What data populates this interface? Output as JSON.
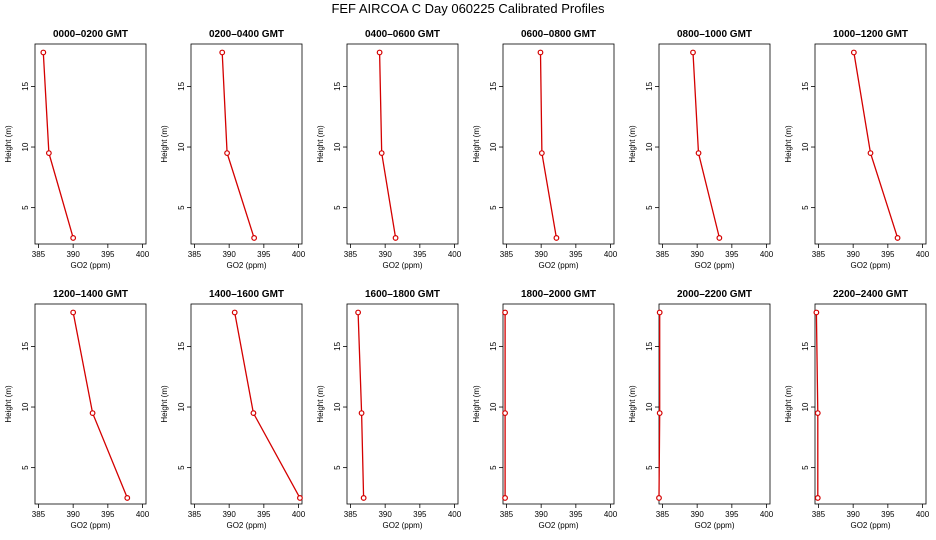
{
  "page": {
    "title": "FEF AIRCOA C  Day 060225  Calibrated Profiles"
  },
  "style": {
    "series_color": "#d40000",
    "axis_color": "#000000"
  },
  "chart_data": [
    {
      "type": "line",
      "title": "0000–0200 GMT",
      "xlabel": "GO2 (ppm)",
      "ylabel": "Height (m)",
      "xlim": [
        384.5,
        400.5
      ],
      "ylim": [
        2,
        18.5
      ],
      "xticks": [
        385,
        390,
        395,
        400
      ],
      "yticks": [
        5,
        10,
        15
      ],
      "series": [
        {
          "x": [
            390.0,
            386.5,
            385.7
          ],
          "y": [
            2.5,
            9.5,
            17.8
          ]
        }
      ]
    },
    {
      "type": "line",
      "title": "0200–0400 GMT",
      "xlabel": "GO2 (ppm)",
      "ylabel": "Height (m)",
      "xlim": [
        384.5,
        400.5
      ],
      "ylim": [
        2,
        18.5
      ],
      "xticks": [
        385,
        390,
        395,
        400
      ],
      "yticks": [
        5,
        10,
        15
      ],
      "series": [
        {
          "x": [
            393.6,
            389.7,
            389.0
          ],
          "y": [
            2.5,
            9.5,
            17.8
          ]
        }
      ]
    },
    {
      "type": "line",
      "title": "0400–0600 GMT",
      "xlabel": "GO2 (ppm)",
      "ylabel": "Height (m)",
      "xlim": [
        384.5,
        400.5
      ],
      "ylim": [
        2,
        18.5
      ],
      "xticks": [
        385,
        390,
        395,
        400
      ],
      "yticks": [
        5,
        10,
        15
      ],
      "series": [
        {
          "x": [
            391.5,
            389.5,
            389.2
          ],
          "y": [
            2.5,
            9.5,
            17.8
          ]
        }
      ]
    },
    {
      "type": "line",
      "title": "0600–0800 GMT",
      "xlabel": "GO2 (ppm)",
      "ylabel": "Height (m)",
      "xlim": [
        384.5,
        400.5
      ],
      "ylim": [
        2,
        18.5
      ],
      "xticks": [
        385,
        390,
        395,
        400
      ],
      "yticks": [
        5,
        10,
        15
      ],
      "series": [
        {
          "x": [
            392.2,
            390.1,
            389.9
          ],
          "y": [
            2.5,
            9.5,
            17.8
          ]
        }
      ]
    },
    {
      "type": "line",
      "title": "0800–1000 GMT",
      "xlabel": "GO2 (ppm)",
      "ylabel": "Height (m)",
      "xlim": [
        384.5,
        400.5
      ],
      "ylim": [
        2,
        18.5
      ],
      "xticks": [
        385,
        390,
        395,
        400
      ],
      "yticks": [
        5,
        10,
        15
      ],
      "series": [
        {
          "x": [
            393.2,
            390.2,
            389.4
          ],
          "y": [
            2.5,
            9.5,
            17.8
          ]
        }
      ]
    },
    {
      "type": "line",
      "title": "1000–1200 GMT",
      "xlabel": "GO2 (ppm)",
      "ylabel": "Height (m)",
      "xlim": [
        384.5,
        400.5
      ],
      "ylim": [
        2,
        18.5
      ],
      "xticks": [
        385,
        390,
        395,
        400
      ],
      "yticks": [
        5,
        10,
        15
      ],
      "series": [
        {
          "x": [
            396.4,
            392.5,
            390.1
          ],
          "y": [
            2.5,
            9.5,
            17.8
          ]
        }
      ]
    },
    {
      "type": "line",
      "title": "1200–1400 GMT",
      "xlabel": "GO2 (ppm)",
      "ylabel": "Height (m)",
      "xlim": [
        384.5,
        400.5
      ],
      "ylim": [
        2,
        18.5
      ],
      "xticks": [
        385,
        390,
        395,
        400
      ],
      "yticks": [
        5,
        10,
        15
      ],
      "series": [
        {
          "x": [
            397.8,
            392.8,
            390.0
          ],
          "y": [
            2.5,
            9.5,
            17.8
          ]
        }
      ]
    },
    {
      "type": "line",
      "title": "1400–1600 GMT",
      "xlabel": "GO2 (ppm)",
      "ylabel": "Height (m)",
      "xlim": [
        384.5,
        400.5
      ],
      "ylim": [
        2,
        18.5
      ],
      "xticks": [
        385,
        390,
        395,
        400
      ],
      "yticks": [
        5,
        10,
        15
      ],
      "series": [
        {
          "x": [
            400.2,
            393.5,
            390.8
          ],
          "y": [
            2.5,
            9.5,
            17.8
          ]
        }
      ]
    },
    {
      "type": "line",
      "title": "1600–1800 GMT",
      "xlabel": "GO2 (ppm)",
      "ylabel": "Height (m)",
      "xlim": [
        384.5,
        400.5
      ],
      "ylim": [
        2,
        18.5
      ],
      "xticks": [
        385,
        390,
        395,
        400
      ],
      "yticks": [
        5,
        10,
        15
      ],
      "series": [
        {
          "x": [
            386.9,
            386.6,
            386.1
          ],
          "y": [
            2.5,
            9.5,
            17.8
          ]
        }
      ]
    },
    {
      "type": "line",
      "title": "1800–2000 GMT",
      "xlabel": "GO2 (ppm)",
      "ylabel": "Height (m)",
      "xlim": [
        384.5,
        400.5
      ],
      "ylim": [
        2,
        18.5
      ],
      "xticks": [
        385,
        390,
        395,
        400
      ],
      "yticks": [
        5,
        10,
        15
      ],
      "series": [
        {
          "x": [
            384.8,
            384.8,
            384.8
          ],
          "y": [
            2.5,
            9.5,
            17.8
          ]
        }
      ]
    },
    {
      "type": "line",
      "title": "2000–2200 GMT",
      "xlabel": "GO2 (ppm)",
      "ylabel": "Height (m)",
      "xlim": [
        384.5,
        400.5
      ],
      "ylim": [
        2,
        18.5
      ],
      "xticks": [
        385,
        390,
        395,
        400
      ],
      "yticks": [
        5,
        10,
        15
      ],
      "series": [
        {
          "x": [
            384.5,
            384.6,
            384.6
          ],
          "y": [
            2.5,
            9.5,
            17.8
          ]
        }
      ]
    },
    {
      "type": "line",
      "title": "2200–2400 GMT",
      "xlabel": "GO2 (ppm)",
      "ylabel": "Height (m)",
      "xlim": [
        384.5,
        400.5
      ],
      "ylim": [
        2,
        18.5
      ],
      "xticks": [
        385,
        390,
        395,
        400
      ],
      "yticks": [
        5,
        10,
        15
      ],
      "series": [
        {
          "x": [
            384.9,
            384.9,
            384.7
          ],
          "y": [
            2.5,
            9.5,
            17.8
          ]
        }
      ]
    }
  ]
}
